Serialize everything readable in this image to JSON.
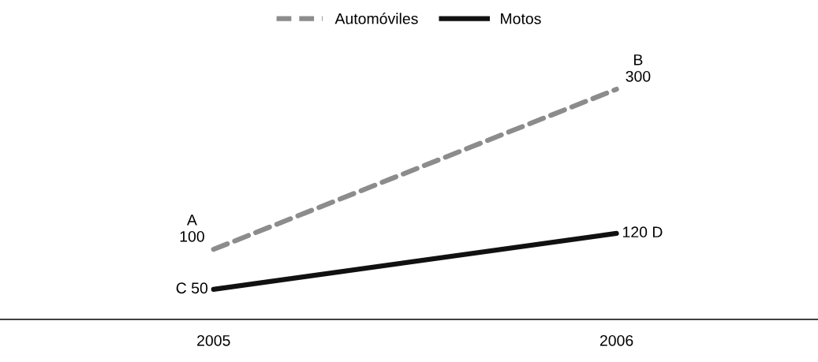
{
  "chart_data": {
    "type": "line",
    "categories": [
      "2005",
      "2006"
    ],
    "series": [
      {
        "name": "Automóviles",
        "color": "#8c8c8c",
        "values": [
          100,
          300
        ],
        "line_style": "dashed",
        "value_labels": [
          "A\n100",
          "B\n300"
        ]
      },
      {
        "name": "Motos",
        "color": "#111111",
        "values": [
          50,
          120
        ],
        "line_style": "solid",
        "value_labels": [
          "C 50",
          "120 D"
        ]
      }
    ],
    "tick_labels": "x",
    "legend": "top",
    "grid": false,
    "marker": "none"
  }
}
